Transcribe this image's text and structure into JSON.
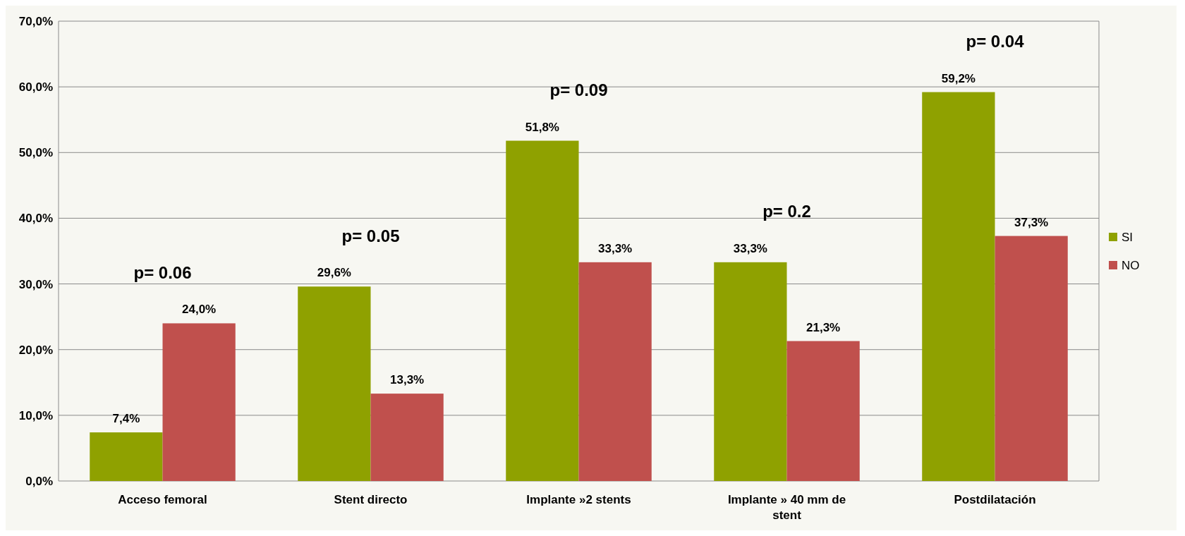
{
  "chart_data": {
    "type": "bar",
    "categories": [
      "Acceso femoral",
      "Stent directo",
      "Implante »2 stents",
      "Implante » 40 mm de stent",
      "Postdilatación"
    ],
    "series": [
      {
        "name": "SI",
        "color": "#8fa100",
        "values": [
          7.4,
          29.6,
          51.8,
          33.3,
          59.2
        ],
        "value_labels": [
          "7,4%",
          "29,6%",
          "51,8%",
          "33,3%",
          "59,2%"
        ]
      },
      {
        "name": "NO",
        "color": "#c0504d",
        "values": [
          24.0,
          13.3,
          33.3,
          21.3,
          37.3
        ],
        "value_labels": [
          "24,0%",
          "13,3%",
          "33,3%",
          "21,3%",
          "37,3%"
        ]
      }
    ],
    "ylim": [
      0,
      70
    ],
    "yticks": [
      {
        "value": 0,
        "label": "0,0%"
      },
      {
        "value": 10,
        "label": "10,0%"
      },
      {
        "value": 20,
        "label": "20,0%"
      },
      {
        "value": 30,
        "label": "30,0%"
      },
      {
        "value": 40,
        "label": "40,0%"
      },
      {
        "value": 50,
        "label": "50,0%"
      },
      {
        "value": 60,
        "label": "60,0%"
      },
      {
        "value": 70,
        "label": "70,0%"
      }
    ],
    "grid": "y",
    "legend": "right",
    "annotations": [
      "p= 0.06",
      "p= 0.05",
      "p= 0.09",
      "p= 0.2",
      "p= 0.04"
    ]
  }
}
